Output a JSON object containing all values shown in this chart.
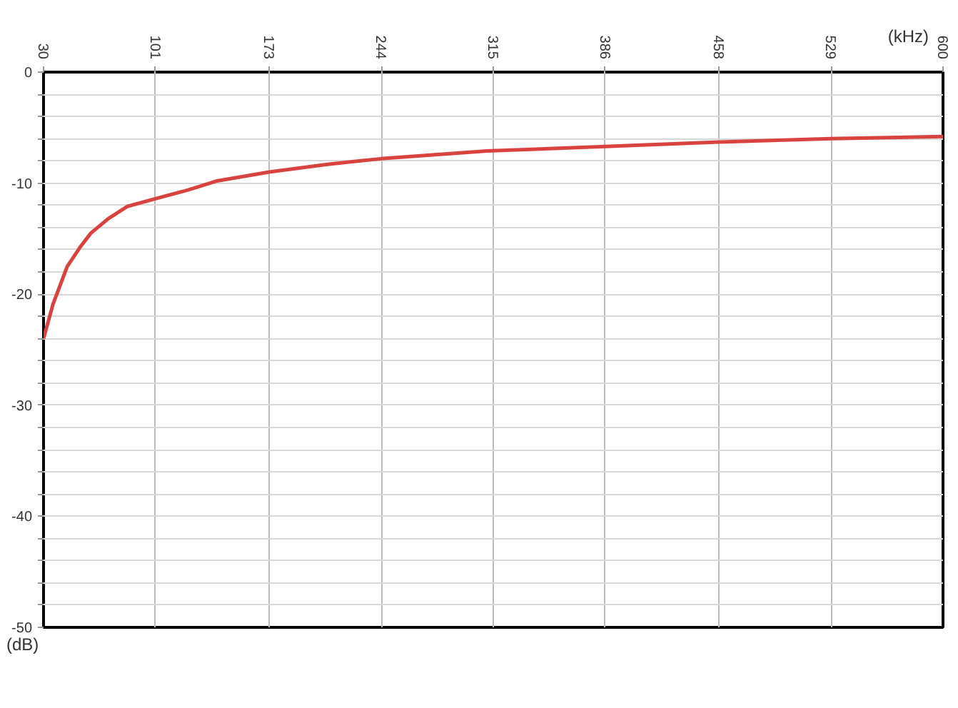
{
  "chart_data": {
    "type": "line",
    "xlabel": "(kHz)",
    "ylabel": "(dB)",
    "x": [
      30,
      36,
      45,
      53,
      60,
      71,
      83,
      101,
      122,
      140,
      173,
      210,
      244,
      311,
      386,
      458,
      529,
      600
    ],
    "series": [
      {
        "color": "#d9433f",
        "values": [
          -24.0,
          -20.9,
          -17.5,
          -15.8,
          -14.5,
          -13.2,
          -12.1,
          -11.4,
          -10.6,
          -9.8,
          -9.0,
          -8.3,
          -7.8,
          -7.1,
          -6.7,
          -6.3,
          -6.0,
          -5.8
        ]
      }
    ],
    "xlim": [
      30,
      600
    ],
    "xticks": [
      30,
      101,
      173,
      244,
      315,
      386,
      458,
      529,
      600
    ],
    "ylim": [
      -50,
      0
    ],
    "yticks": [
      0,
      {
        "value": -2,
        "label": null
      },
      {
        "value": -4,
        "label": null
      },
      {
        "value": -6,
        "label": null
      },
      {
        "value": -8,
        "label": null
      },
      -10,
      {
        "value": -12,
        "label": null
      },
      {
        "value": -14,
        "label": null
      },
      {
        "value": -16,
        "label": null
      },
      {
        "value": -18,
        "label": null
      },
      -20,
      {
        "value": -22,
        "label": null
      },
      {
        "value": -24,
        "label": null
      },
      {
        "value": -26,
        "label": null
      },
      {
        "value": -28,
        "label": null
      },
      -30,
      {
        "value": -32,
        "label": null
      },
      {
        "value": -34,
        "label": null
      },
      {
        "value": -36,
        "label": null
      },
      {
        "value": -38,
        "label": null
      },
      -40,
      {
        "value": -42,
        "label": null
      },
      {
        "value": -44,
        "label": null
      },
      {
        "value": -46,
        "label": null
      },
      {
        "value": -48,
        "label": null
      },
      -50
    ],
    "grid": true,
    "marker": "none",
    "line_style": "solid"
  }
}
